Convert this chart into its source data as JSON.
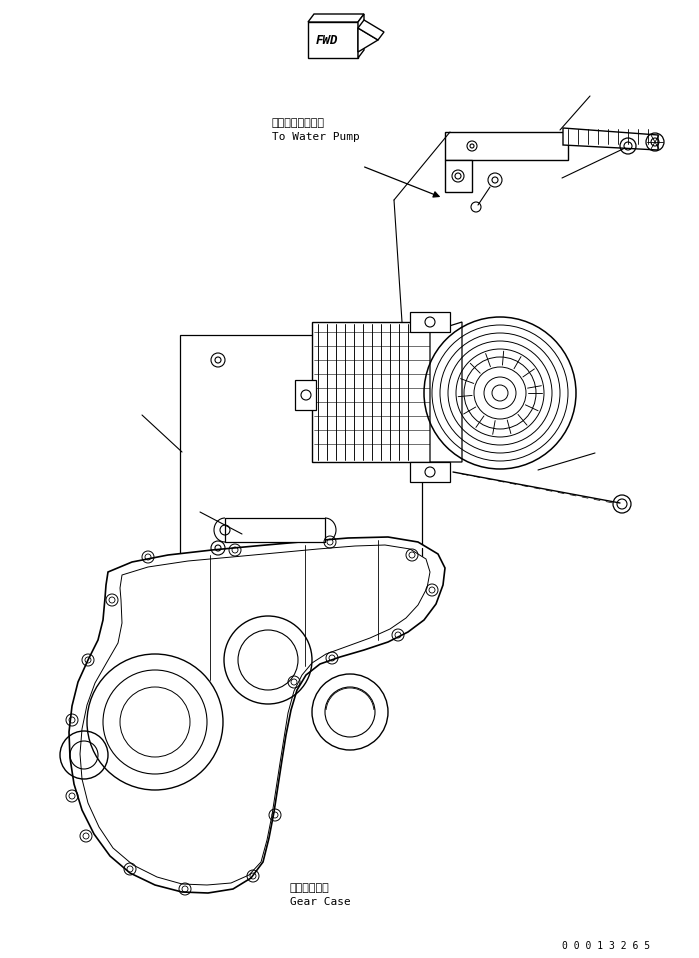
{
  "bg_color": "#ffffff",
  "line_color": "#000000",
  "fig_width": 6.99,
  "fig_height": 9.58,
  "dpi": 100,
  "part_number": "0 0 0 1 3 2 6 5",
  "label_water_pump_jp": "ウォータポンプへ",
  "label_water_pump_en": "To Water Pump",
  "label_gear_case_jp": "ギヤーケース",
  "label_gear_case_en": "Gear Case",
  "label_fwd": "FWD"
}
